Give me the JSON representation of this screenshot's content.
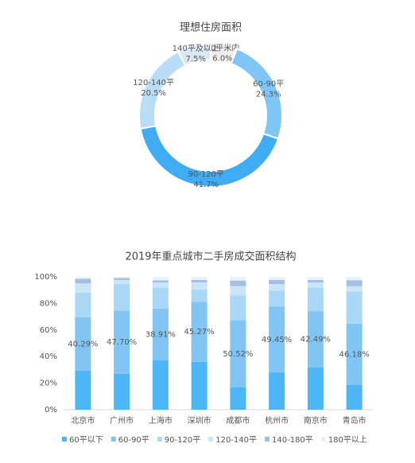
{
  "chart_data": [
    {
      "type": "pie",
      "donut": true,
      "title": "理想住房面积",
      "categories": [
        "60平米内",
        "60-90平",
        "90-120平",
        "120-140平",
        "140平及以上"
      ],
      "values": [
        6.0,
        24.3,
        41.7,
        20.5,
        7.5
      ],
      "value_labels": [
        "6.0%",
        "24.3%",
        "41.7%",
        "20.5%",
        "7.5%"
      ],
      "colors": [
        "#eeeeee",
        "#7fc6f6",
        "#3facf4",
        "#b9ddf7",
        "#dbe8f3"
      ]
    },
    {
      "type": "bar",
      "stacked": true,
      "title": "2019年重点城市二手房成交面积结构",
      "categories": [
        "北京市",
        "广州市",
        "上海市",
        "深圳市",
        "成都市",
        "杭州市",
        "南京市",
        "青岛市"
      ],
      "series": [
        {
          "name": "60平以下",
          "color": "#4cb6f6",
          "values": [
            29.4,
            27.0,
            37.1,
            36.0,
            16.8,
            28.1,
            31.7,
            18.6
          ]
        },
        {
          "name": "60-90平",
          "color": "#80c5f3",
          "values": [
            40.29,
            47.7,
            38.91,
            45.27,
            50.52,
            49.45,
            42.49,
            46.18
          ],
          "value_labels": [
            "40.29%",
            "47.70%",
            "38.91%",
            "45.27%",
            "50.52%",
            "49.45%",
            "42.49%",
            "46.18%"
          ]
        },
        {
          "name": "90-120平",
          "color": "#a9d7f6",
          "values": [
            18.3,
            19.9,
            15.6,
            9.1,
            18.7,
            12.0,
            17.8,
            24.2
          ]
        },
        {
          "name": "120-140平",
          "color": "#cae5f8",
          "values": [
            7.0,
            3.0,
            4.2,
            5.5,
            7.0,
            5.0,
            3.7,
            4.0
          ]
        },
        {
          "name": "140-180平",
          "color": "#a4bfe1",
          "values": [
            3.5,
            1.5,
            1.6,
            1.8,
            4.2,
            3.2,
            2.0,
            4.5
          ]
        },
        {
          "name": "180平以上",
          "color": "#edf1f6",
          "values": [
            1.51,
            0.9,
            2.59,
            2.33,
            2.78,
            2.25,
            2.31,
            2.52
          ]
        }
      ],
      "ylim": [
        0,
        100
      ],
      "yticks": [
        {
          "value": 0,
          "label": "0%"
        },
        {
          "value": 20,
          "label": "20%"
        },
        {
          "value": 40,
          "label": "40%"
        },
        {
          "value": 60,
          "label": "60%"
        },
        {
          "value": 80,
          "label": "80%"
        },
        {
          "value": 100,
          "label": "100%"
        }
      ],
      "legend": "bottom"
    }
  ]
}
